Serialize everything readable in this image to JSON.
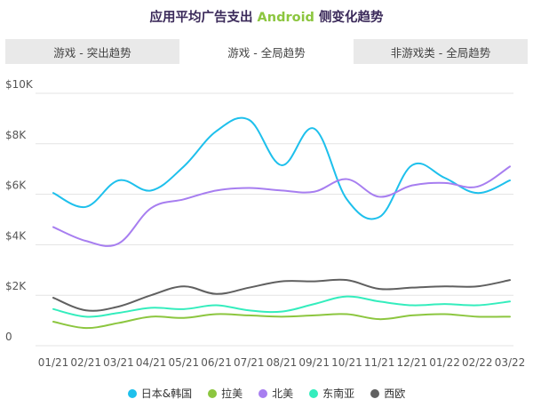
{
  "title": {
    "prefix": "应用平均广告支出",
    "highlight": "Android",
    "suffix": "侧变化趋势"
  },
  "tabs": [
    {
      "label": "游戏 - 突出趋势",
      "active": false
    },
    {
      "label": "游戏 - 全局趋势",
      "active": true
    },
    {
      "label": "非游戏类 - 全局趋势",
      "active": false
    }
  ],
  "colors": {
    "title": "#3b2a5a",
    "highlight": "#8cc63f",
    "grid": "#e3e3e3",
    "tick_text": "#555555"
  },
  "chart_data": {
    "type": "line",
    "categories": [
      "01/21",
      "02/21",
      "03/21",
      "04/21",
      "05/21",
      "06/21",
      "07/21",
      "08/21",
      "09/21",
      "10/21",
      "11/21",
      "12/21",
      "01/22",
      "02/22",
      "03/22"
    ],
    "ylim": [
      0,
      10000
    ],
    "yticks": [
      0,
      2000,
      4000,
      6000,
      8000,
      10000
    ],
    "ytick_labels": [
      "0",
      "$2K",
      "$4K",
      "$6K",
      "$8K",
      "$10K"
    ],
    "grid": true,
    "legend_position": "bottom",
    "series": [
      {
        "name": "日本&韩国",
        "color": "#1ec0ec",
        "values": [
          6050,
          5500,
          6550,
          6150,
          7100,
          8500,
          8950,
          7150,
          8600,
          5800,
          5100,
          7150,
          6650,
          6050,
          6550
        ]
      },
      {
        "name": "拉美",
        "color": "#8cc63f",
        "values": [
          950,
          700,
          900,
          1150,
          1100,
          1250,
          1200,
          1150,
          1200,
          1250,
          1050,
          1200,
          1250,
          1150,
          1150
        ]
      },
      {
        "name": "北美",
        "color": "#a77ef0",
        "values": [
          4700,
          4150,
          4050,
          5450,
          5800,
          6150,
          6250,
          6150,
          6100,
          6600,
          5900,
          6350,
          6450,
          6300,
          7100
        ]
      },
      {
        "name": "东南亚",
        "color": "#34edbd",
        "values": [
          1450,
          1150,
          1300,
          1500,
          1450,
          1600,
          1400,
          1350,
          1650,
          1950,
          1750,
          1600,
          1650,
          1600,
          1750
        ]
      },
      {
        "name": "西欧",
        "color": "#606060",
        "values": [
          1900,
          1400,
          1550,
          2000,
          2350,
          2050,
          2300,
          2550,
          2550,
          2600,
          2250,
          2300,
          2350,
          2350,
          2600
        ]
      }
    ]
  }
}
